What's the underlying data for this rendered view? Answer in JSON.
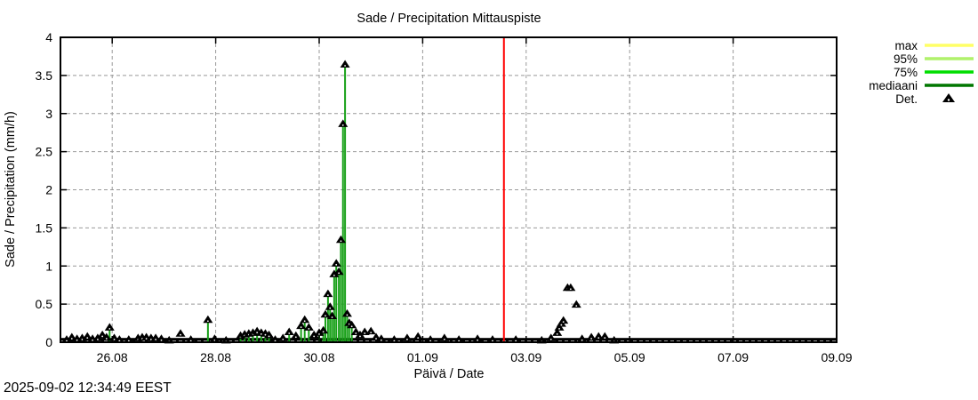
{
  "chart_data": {
    "type": "line",
    "subtype": "impulses-with-point-markers",
    "title": "Sade / Precipitation  Mittauspiste",
    "xlabel": "Päivä / Date",
    "ylabel": "Sade / Precipitation (mm/h)",
    "ylim": [
      0,
      4
    ],
    "grid": "dashed-gray-major",
    "x_axis_days_total": 15,
    "x_ticks": [
      {
        "day": 1,
        "label": "26.08"
      },
      {
        "day": 3,
        "label": "28.08"
      },
      {
        "day": 5,
        "label": "30.08"
      },
      {
        "day": 7,
        "label": "01.09"
      },
      {
        "day": 9,
        "label": "03.09"
      },
      {
        "day": 11,
        "label": "05.09"
      },
      {
        "day": 13,
        "label": "07.09"
      },
      {
        "day": 15,
        "label": "09.09"
      }
    ],
    "y_ticks": [
      {
        "v": 0,
        "label": "0"
      },
      {
        "v": 0.5,
        "label": "0.5"
      },
      {
        "v": 1,
        "label": "1"
      },
      {
        "v": 1.5,
        "label": "1.5"
      },
      {
        "v": 2,
        "label": "2"
      },
      {
        "v": 2.5,
        "label": "2.5"
      },
      {
        "v": 3,
        "label": "3"
      },
      {
        "v": 3.5,
        "label": "3.5"
      },
      {
        "v": 4,
        "label": "4"
      }
    ],
    "legend": [
      {
        "label": "max",
        "color": "#ffff66",
        "type": "line"
      },
      {
        "label": "95%",
        "color": "#b0f26b",
        "type": "line"
      },
      {
        "label": "75%",
        "color": "#00dd00",
        "type": "line"
      },
      {
        "label": "mediaani",
        "color": "#007700",
        "type": "line"
      },
      {
        "label": "Det.",
        "color": "#000000",
        "type": "filled-triangle"
      }
    ],
    "now_line": {
      "day": 8.57,
      "color": "#ff0000"
    },
    "stem_color": "#18a018",
    "marker_color": "#000000",
    "grid_color": "#999999",
    "baseline": {
      "from_day": 0,
      "to_day": 15,
      "value": 0.02
    },
    "points_format": "[days_since_25aug_0000, mm_per_h, has_green_stem]",
    "points": [
      [
        0.12,
        0.04,
        0
      ],
      [
        0.22,
        0.07,
        0
      ],
      [
        0.32,
        0.05,
        0
      ],
      [
        0.42,
        0.06,
        0
      ],
      [
        0.52,
        0.08,
        0
      ],
      [
        0.62,
        0.05,
        0
      ],
      [
        0.72,
        0.06,
        0
      ],
      [
        0.81,
        0.1,
        0
      ],
      [
        0.89,
        0.07,
        0
      ],
      [
        0.95,
        0.2,
        1
      ],
      [
        1.04,
        0.06,
        0
      ],
      [
        1.14,
        0.04,
        0
      ],
      [
        1.32,
        0.04,
        0
      ],
      [
        1.5,
        0.06,
        0
      ],
      [
        1.58,
        0.07,
        0
      ],
      [
        1.66,
        0.07,
        0
      ],
      [
        1.75,
        0.06,
        0
      ],
      [
        1.84,
        0.06,
        0
      ],
      [
        1.95,
        0.05,
        0
      ],
      [
        2.1,
        0.03,
        0
      ],
      [
        2.32,
        0.12,
        0
      ],
      [
        2.52,
        0.04,
        0
      ],
      [
        2.85,
        0.3,
        1
      ],
      [
        2.98,
        0.05,
        0
      ],
      [
        3.2,
        0.03,
        0
      ],
      [
        3.48,
        0.09,
        1
      ],
      [
        3.56,
        0.11,
        1
      ],
      [
        3.64,
        0.12,
        1
      ],
      [
        3.72,
        0.13,
        1
      ],
      [
        3.8,
        0.15,
        1
      ],
      [
        3.88,
        0.13,
        1
      ],
      [
        3.96,
        0.12,
        1
      ],
      [
        4.03,
        0.1,
        1
      ],
      [
        4.15,
        0.04,
        0
      ],
      [
        4.3,
        0.06,
        0
      ],
      [
        4.42,
        0.14,
        1
      ],
      [
        4.55,
        0.09,
        0
      ],
      [
        4.65,
        0.22,
        1
      ],
      [
        4.72,
        0.3,
        1
      ],
      [
        4.8,
        0.2,
        1
      ],
      [
        4.9,
        0.1,
        0
      ],
      [
        5.0,
        0.13,
        1
      ],
      [
        5.08,
        0.16,
        1
      ],
      [
        5.12,
        0.37,
        1
      ],
      [
        5.17,
        0.64,
        1
      ],
      [
        5.21,
        0.47,
        1
      ],
      [
        5.25,
        0.35,
        1
      ],
      [
        5.29,
        0.9,
        1
      ],
      [
        5.33,
        1.04,
        1
      ],
      [
        5.38,
        0.93,
        1
      ],
      [
        5.42,
        1.35,
        1
      ],
      [
        5.46,
        2.87,
        1
      ],
      [
        5.5,
        3.65,
        1
      ],
      [
        5.54,
        0.38,
        1
      ],
      [
        5.58,
        0.26,
        1
      ],
      [
        5.63,
        0.23,
        1
      ],
      [
        5.71,
        0.14,
        0
      ],
      [
        5.79,
        0.1,
        0
      ],
      [
        5.88,
        0.14,
        0
      ],
      [
        6.0,
        0.15,
        0
      ],
      [
        6.1,
        0.07,
        0
      ],
      [
        6.2,
        0.05,
        0
      ],
      [
        6.45,
        0.04,
        0
      ],
      [
        6.7,
        0.06,
        0
      ],
      [
        6.91,
        0.08,
        0
      ],
      [
        7.15,
        0.04,
        0
      ],
      [
        7.42,
        0.06,
        0
      ],
      [
        7.7,
        0.04,
        0
      ],
      [
        8.06,
        0.05,
        0
      ],
      [
        8.35,
        0.04,
        0
      ],
      [
        8.8,
        0.04,
        0
      ],
      [
        9.3,
        0.03,
        0
      ],
      [
        9.48,
        0.06,
        0
      ],
      [
        9.6,
        0.13,
        0
      ],
      [
        9.64,
        0.2,
        0
      ],
      [
        9.68,
        0.25,
        0
      ],
      [
        9.72,
        0.29,
        0
      ],
      [
        9.8,
        0.72,
        0
      ],
      [
        9.86,
        0.72,
        0
      ],
      [
        9.97,
        0.5,
        0
      ],
      [
        10.08,
        0.05,
        0
      ],
      [
        10.26,
        0.07,
        0
      ],
      [
        10.4,
        0.08,
        0
      ],
      [
        10.52,
        0.08,
        0
      ],
      [
        10.7,
        0.03,
        0
      ]
    ]
  },
  "footer": {
    "timestamp": "2025-09-02 12:34:49 EEST"
  }
}
